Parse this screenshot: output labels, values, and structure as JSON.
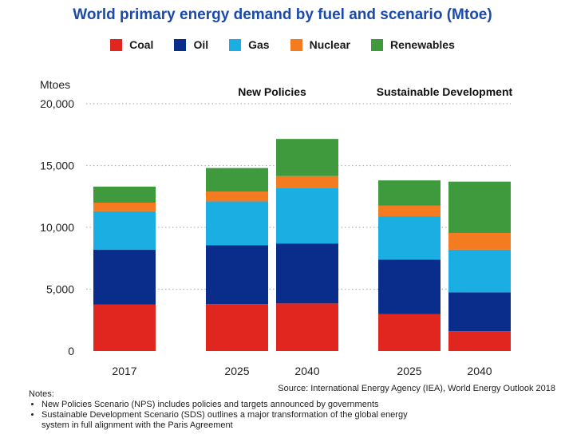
{
  "title": "World primary energy demand by fuel and scenario (Mtoe)",
  "colors": {
    "Coal": "#e0261f",
    "Oil": "#0a2d8c",
    "Gas": "#1aaee3",
    "Nuclear": "#f47b20",
    "Renewables": "#3e9a3c"
  },
  "chart_data": {
    "type": "bar",
    "stacked": true,
    "title": "World primary energy demand by fuel and scenario (Mtoe)",
    "ylabel": "Mtoes",
    "ylim": [
      0,
      20000
    ],
    "yticks": [
      "0",
      "5,000",
      "10,000",
      "15,000",
      "20,000"
    ],
    "grid": "dotted horizontal",
    "legend_position": "top",
    "groups": [
      "",
      "New Policies",
      "Sustainable Development"
    ],
    "categories": [
      "2017",
      "2025",
      "2040",
      "2025",
      "2040"
    ],
    "category_group": [
      0,
      1,
      1,
      2,
      2
    ],
    "series": [
      {
        "name": "Coal",
        "values": [
          3750,
          3800,
          3850,
          3000,
          1600
        ]
      },
      {
        "name": "Oil",
        "values": [
          4450,
          4750,
          4850,
          4400,
          3150
        ]
      },
      {
        "name": "Gas",
        "values": [
          3100,
          3550,
          4500,
          3500,
          3450
        ]
      },
      {
        "name": "Nuclear",
        "values": [
          700,
          800,
          950,
          850,
          1350
        ]
      },
      {
        "name": "Renewables",
        "values": [
          1300,
          1900,
          3000,
          2050,
          4150
        ]
      }
    ]
  },
  "source": "Source: International Energy Agency (IEA), World Energy Outlook 2018",
  "notes": {
    "heading": "Notes:",
    "items": [
      "New Policies Scenario (NPS) includes policies and targets announced by governments",
      "Sustainable Development Scenario (SDS) outlines a major transformation of the global energy system in full alignment with the Paris Agreement"
    ]
  }
}
